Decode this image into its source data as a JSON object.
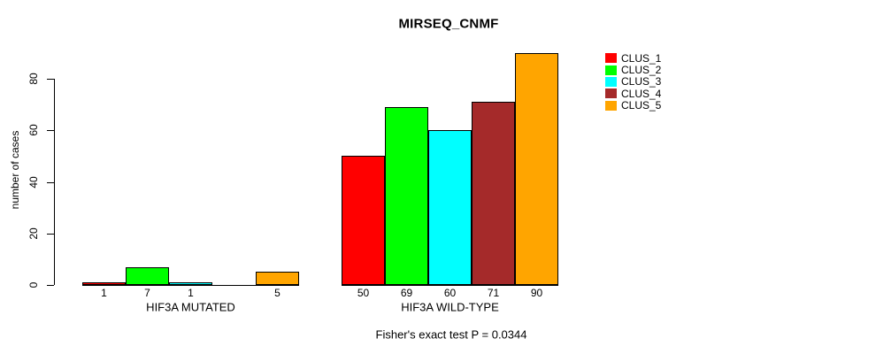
{
  "chart_data": {
    "type": "bar",
    "title": "MIRSEQ_CNMF",
    "ylabel": "number of cases",
    "xlabel": "",
    "ylim": [
      0,
      90
    ],
    "yticks": [
      0,
      20,
      40,
      60,
      80
    ],
    "grid": false,
    "legend_position": "right",
    "series": [
      "CLUS_1",
      "CLUS_2",
      "CLUS_3",
      "CLUS_4",
      "CLUS_5"
    ],
    "colors": [
      "#FF0000",
      "#00FF00",
      "#00FFFF",
      "#A52A2A",
      "#FFA500"
    ],
    "groups": [
      {
        "label": "HIF3A MUTATED",
        "values": [
          1,
          7,
          1,
          0,
          5
        ],
        "bar_labels": [
          "1",
          "7",
          "1",
          "",
          "5"
        ]
      },
      {
        "label": "HIF3A WILD-TYPE",
        "values": [
          50,
          69,
          60,
          71,
          90
        ],
        "bar_labels": [
          "50",
          "69",
          "60",
          "71",
          "90"
        ]
      }
    ],
    "annotation": "Fisher's exact test P = 0.0344"
  }
}
